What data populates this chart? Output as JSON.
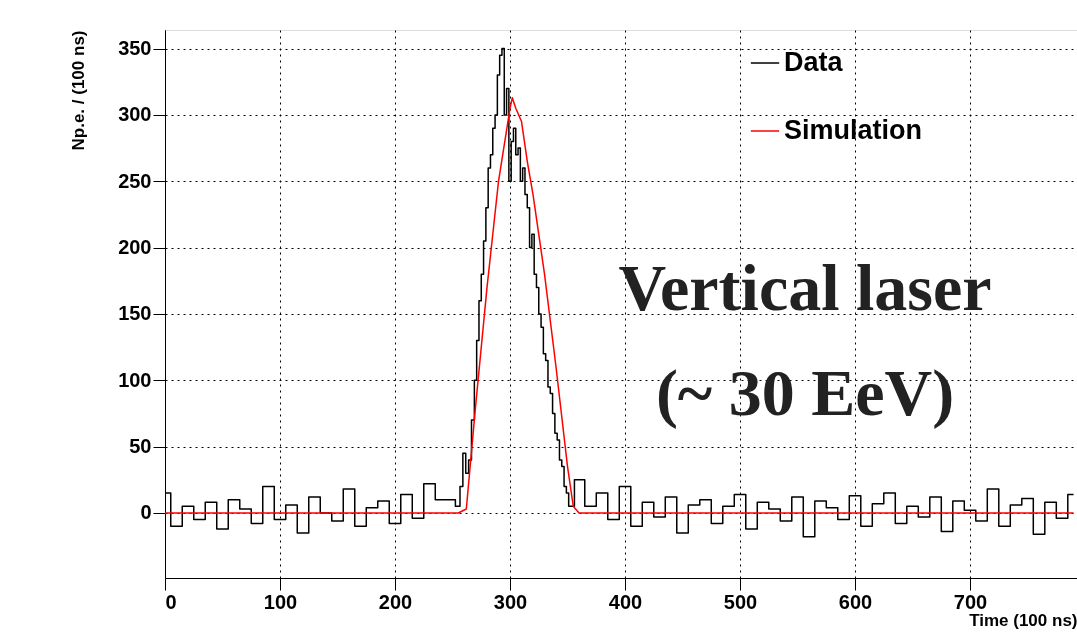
{
  "chart_data": {
    "type": "step",
    "xlabel": "Time (100 ns)",
    "ylabel": "Np.e. / (100 ns)",
    "xlim": [
      0,
      793
    ],
    "ylim": [
      -49,
      364
    ],
    "xticks": [
      0,
      100,
      200,
      300,
      400,
      500,
      600,
      700
    ],
    "yticks": [
      0,
      50,
      100,
      150,
      200,
      250,
      300,
      350
    ],
    "grid": true,
    "legend": "top right",
    "annotations": [
      "Vertical laser\n(~ 30 EeV)"
    ],
    "series": [
      {
        "name": "Data",
        "color": "#000000",
        "x": [
          0,
          10,
          20,
          30,
          40,
          50,
          60,
          70,
          80,
          90,
          100,
          110,
          120,
          130,
          140,
          150,
          160,
          170,
          180,
          190,
          200,
          210,
          220,
          230,
          240,
          250,
          255,
          258,
          260,
          263,
          265,
          268,
          270,
          272,
          274,
          276,
          278,
          280,
          282,
          284,
          286,
          288,
          290,
          292,
          294,
          296,
          298,
          300,
          302,
          304,
          306,
          308,
          310,
          312,
          314,
          316,
          318,
          320,
          322,
          324,
          326,
          328,
          330,
          332,
          334,
          336,
          338,
          340,
          342,
          344,
          346,
          348,
          350,
          352,
          360,
          370,
          380,
          390,
          400,
          410,
          420,
          430,
          440,
          450,
          460,
          470,
          480,
          490,
          500,
          510,
          520,
          530,
          540,
          550,
          560,
          570,
          580,
          590,
          600,
          610,
          620,
          630,
          640,
          650,
          660,
          670,
          680,
          690,
          700,
          710,
          720,
          730,
          740,
          750,
          760,
          770,
          780,
          790
        ],
        "values": [
          15,
          -10,
          5,
          -5,
          8,
          -12,
          10,
          3,
          -8,
          20,
          -5,
          6,
          -15,
          12,
          0,
          -6,
          18,
          -10,
          4,
          9,
          -8,
          14,
          -4,
          22,
          10,
          10,
          5,
          20,
          45,
          30,
          40,
          70,
          100,
          130,
          160,
          180,
          205,
          230,
          260,
          270,
          290,
          300,
          330,
          345,
          350,
          300,
          320,
          250,
          280,
          290,
          270,
          275,
          250,
          260,
          240,
          230,
          200,
          210,
          180,
          170,
          150,
          140,
          120,
          115,
          95,
          90,
          75,
          60,
          55,
          40,
          35,
          20,
          15,
          5,
          25,
          5,
          15,
          -5,
          20,
          -10,
          8,
          -3,
          12,
          -15,
          6,
          10,
          -8,
          5,
          14,
          -12,
          8,
          3,
          -6,
          12,
          -18,
          9,
          4,
          -5,
          13,
          -10,
          7,
          15,
          -8,
          5,
          -3,
          12,
          -14,
          9,
          2,
          -6,
          18,
          -10,
          6,
          11,
          -16,
          8,
          -4,
          14
        ]
      },
      {
        "name": "Simulation",
        "type": "line",
        "color": "#ff0000",
        "x": [
          0,
          255,
          262,
          270,
          280,
          290,
          300,
          302,
          305,
          310,
          315,
          320,
          330,
          340,
          350,
          355,
          360,
          790
        ],
        "values": [
          0,
          0,
          3,
          80,
          170,
          250,
          305,
          313,
          305,
          295,
          265,
          240,
          180,
          110,
          35,
          5,
          0,
          0
        ]
      }
    ]
  }
}
